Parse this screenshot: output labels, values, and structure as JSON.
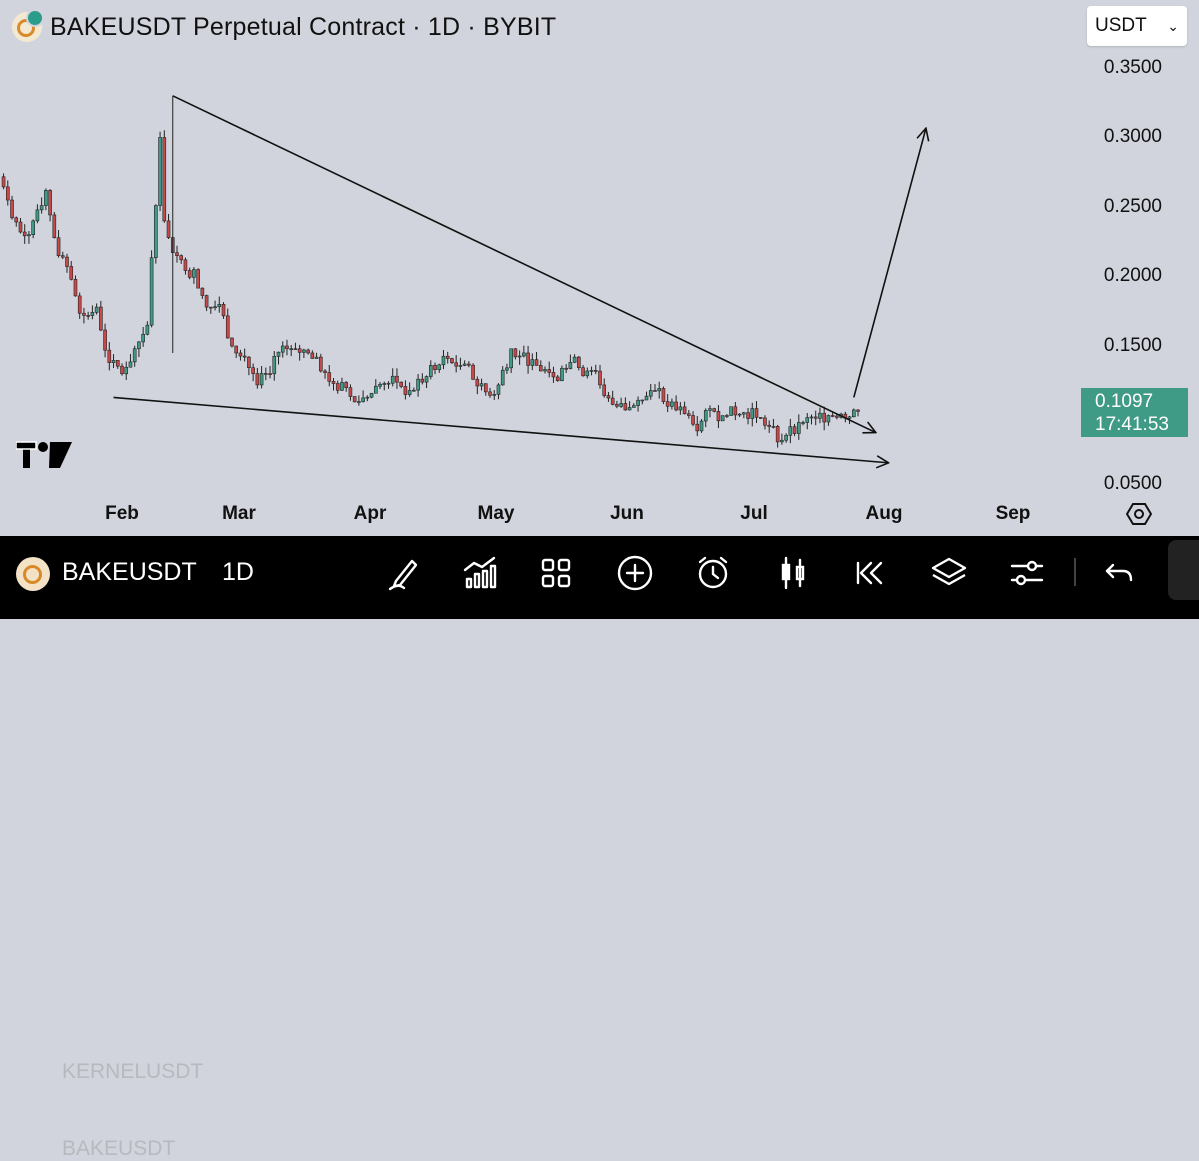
{
  "header": {
    "title": "BAKEUSDT Perpetual Contract · 1D · BYBIT",
    "currency": "USDT"
  },
  "price_axis": {
    "labels": [
      "0.3500",
      "0.3000",
      "0.2500",
      "0.2000",
      "0.1500",
      "0.0500"
    ],
    "values": [
      0.35,
      0.3,
      0.25,
      0.2,
      0.15,
      0.05
    ]
  },
  "current_price": {
    "price": "0.1097",
    "countdown": "17:41:53",
    "color": "#3f9a86"
  },
  "time_axis": {
    "labels": [
      "Feb",
      "Mar",
      "Apr",
      "May",
      "Jun",
      "Jul",
      "Aug",
      "Sep"
    ]
  },
  "colors": {
    "up": "#3f9a86",
    "down": "#c8494a",
    "background": "#d1d4dc",
    "toolbar": "#000000"
  },
  "chart_data": {
    "type": "candlestick",
    "interval": "1D",
    "x": [
      "Jan 1",
      "Jan 3",
      "Jan 6",
      "Jan 9",
      "Jan 12",
      "Jan 15",
      "Jan 18",
      "Jan 21",
      "Jan 24",
      "Jan 27",
      "Jan 30",
      "Feb 2",
      "Feb 5",
      "Feb 8",
      "Feb 11",
      "Feb 12",
      "Feb 13",
      "Feb 16",
      "Feb 19",
      "Feb 22",
      "Feb 25",
      "Feb 28",
      "Mar 3",
      "Mar 6",
      "Mar 9",
      "Mar 12",
      "Mar 15",
      "Mar 18",
      "Mar 21",
      "Mar 24",
      "Mar 27",
      "Mar 30",
      "Apr 2",
      "Apr 5",
      "Apr 8",
      "Apr 11",
      "Apr 14",
      "Apr 17",
      "Apr 20",
      "Apr 23",
      "Apr 26",
      "Apr 29",
      "May 2",
      "May 5",
      "May 8",
      "May 11",
      "May 14",
      "May 17",
      "May 20",
      "May 23",
      "May 26",
      "May 29",
      "Jun 1",
      "Jun 4",
      "Jun 7",
      "Jun 10",
      "Jun 13",
      "Jun 16",
      "Jun 19",
      "Jun 22",
      "Jun 25",
      "Jun 28",
      "Jul 1",
      "Jul 4",
      "Jul 7",
      "Jul 10",
      "Jul 13",
      "Jul 16",
      "Jul 19",
      "Jul 22",
      "Jul 25"
    ],
    "close": [
      0.28,
      0.255,
      0.232,
      0.24,
      0.262,
      0.215,
      0.198,
      0.172,
      0.178,
      0.138,
      0.13,
      0.148,
      0.165,
      0.3,
      0.24,
      0.228,
      0.212,
      0.205,
      0.178,
      0.18,
      0.15,
      0.142,
      0.122,
      0.13,
      0.15,
      0.148,
      0.145,
      0.132,
      0.123,
      0.12,
      0.11,
      0.116,
      0.123,
      0.124,
      0.118,
      0.124,
      0.133,
      0.141,
      0.136,
      0.126,
      0.117,
      0.122,
      0.148,
      0.145,
      0.136,
      0.131,
      0.134,
      0.142,
      0.132,
      0.122,
      0.108,
      0.104,
      0.111,
      0.118,
      0.11,
      0.104,
      0.1,
      0.096,
      0.103,
      0.1,
      0.101,
      0.105,
      0.093,
      0.081,
      0.092,
      0.095,
      0.098,
      0.1,
      0.101,
      0.104,
      0.11
    ],
    "annotations": {
      "upper_trendline": [
        [
          "Feb 13",
          0.33
        ],
        [
          "Jul 29",
          0.088
        ]
      ],
      "lower_trendline": [
        [
          "Jan 30",
          0.113
        ],
        [
          "Aug 1",
          0.066
        ]
      ],
      "breakout_arrow": [
        [
          "Jul 24",
          0.113
        ],
        [
          "Aug 10",
          0.306
        ]
      ]
    },
    "ylim": [
      0.05,
      0.35
    ]
  },
  "toolbar": {
    "symbol": "BAKEUSDT",
    "interval": "1D",
    "ghost_top": "KERNELUSDT",
    "ghost_bottom": "BAKEUSDT"
  }
}
